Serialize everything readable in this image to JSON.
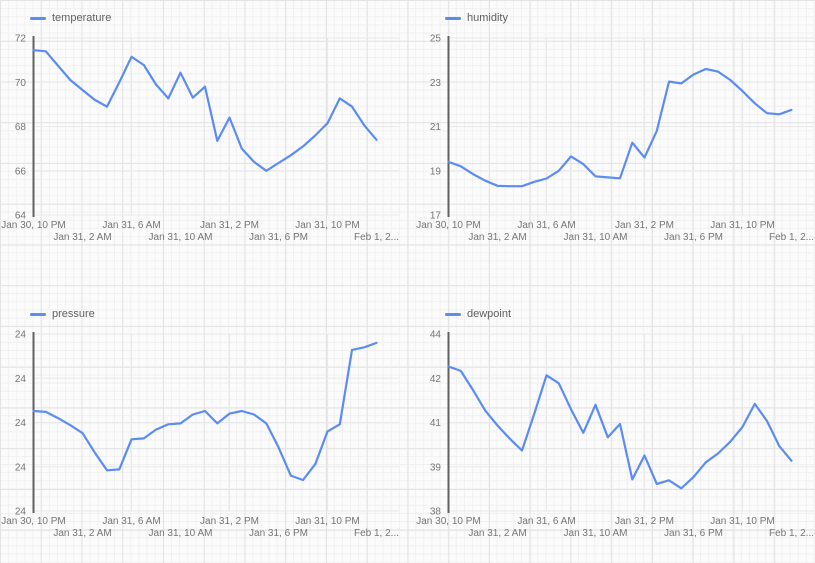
{
  "colors": {
    "series": "#5b8cf5",
    "axis": "#616161",
    "tick_text": "#757575",
    "legend_text": "#616161",
    "chart_grid": "#e9e9e9",
    "paper_grid_minor": "#f0f0f0",
    "paper_grid_major": "#e3e3e3",
    "background": "#fbfbfb"
  },
  "layout": {
    "grid": "2x2",
    "legend_position": "top-left",
    "x_label_rows": "staggered-2-rows"
  },
  "chart_data": [
    {
      "type": "line",
      "legend": "temperature",
      "series_color": "#5b8cf5",
      "x_start_label": "Jan 30, 10 PM",
      "x_interval_hours": 1,
      "x_tick_labels": [
        "Jan 30, 10 PM",
        "Jan 31, 2 AM",
        "Jan 31, 6 AM",
        "Jan 31, 10 AM",
        "Jan 31, 2 PM",
        "Jan 31, 6 PM",
        "Jan 31, 10 PM",
        "Feb 1, 2..."
      ],
      "y_tick_labels": [
        "72",
        "70",
        "68",
        "66",
        "64"
      ],
      "ylim": [
        64,
        72
      ],
      "values": [
        71.45,
        71.4,
        70.75,
        70.1,
        69.65,
        69.2,
        68.9,
        70.0,
        71.15,
        70.78,
        69.9,
        69.27,
        70.43,
        69.3,
        69.8,
        67.35,
        68.4,
        67.0,
        66.4,
        66.0,
        66.35,
        66.7,
        67.1,
        67.6,
        68.15,
        69.27,
        68.9,
        68.05,
        67.4
      ]
    },
    {
      "type": "line",
      "legend": "humidity",
      "series_color": "#5b8cf5",
      "x_start_label": "Jan 30, 10 PM",
      "x_interval_hours": 1,
      "x_tick_labels": [
        "Jan 30, 10 PM",
        "Jan 31, 2 AM",
        "Jan 31, 6 AM",
        "Jan 31, 10 AM",
        "Jan 31, 2 PM",
        "Jan 31, 6 PM",
        "Jan 31, 10 PM",
        "Feb 1, 2..."
      ],
      "y_tick_labels": [
        "25",
        "23",
        "21",
        "19",
        "17"
      ],
      "ylim": [
        17,
        25
      ],
      "values": [
        19.4,
        19.2,
        18.85,
        18.55,
        18.32,
        18.3,
        18.3,
        18.5,
        18.65,
        19.0,
        19.65,
        19.3,
        18.75,
        18.7,
        18.66,
        20.27,
        19.6,
        20.8,
        23.03,
        22.95,
        23.35,
        23.6,
        23.48,
        23.1,
        22.6,
        22.05,
        21.6,
        21.55,
        21.75
      ]
    },
    {
      "type": "line",
      "legend": "pressure",
      "series_color": "#5b8cf5",
      "x_start_label": "Jan 30, 10 PM",
      "x_interval_hours": 1,
      "x_tick_labels": [
        "Jan 30, 10 PM",
        "Jan 31, 2 AM",
        "Jan 31, 6 AM",
        "Jan 31, 10 AM",
        "Jan 31, 2 PM",
        "Jan 31, 6 PM",
        "Jan 31, 10 PM",
        "Feb 1, 2..."
      ],
      "y_tick_labels": [
        "24",
        "24",
        "24",
        "24",
        "24"
      ],
      "ylim": [
        23.9,
        24.1
      ],
      "values": [
        24.013,
        24.012,
        24.005,
        23.997,
        23.988,
        23.966,
        23.946,
        23.947,
        23.981,
        23.982,
        23.992,
        23.998,
        23.999,
        24.009,
        24.013,
        23.999,
        24.01,
        24.013,
        24.009,
        23.999,
        23.972,
        23.94,
        23.935,
        23.953,
        23.99,
        23.998,
        24.082,
        24.085,
        24.09
      ]
    },
    {
      "type": "line",
      "legend": "dewpoint",
      "series_color": "#5b8cf5",
      "x_start_label": "Jan 30, 10 PM",
      "x_interval_hours": 1,
      "x_tick_labels": [
        "Jan 30, 10 PM",
        "Jan 31, 2 AM",
        "Jan 31, 6 AM",
        "Jan 31, 10 AM",
        "Jan 31, 2 PM",
        "Jan 31, 6 PM",
        "Jan 31, 10 PM",
        "Feb 1, 2..."
      ],
      "y_tick_labels": [
        "44",
        "42",
        "41",
        "39",
        "38"
      ],
      "ylim": [
        38,
        44
      ],
      "values": [
        42.9,
        42.75,
        42.1,
        41.4,
        40.9,
        40.45,
        40.05,
        41.3,
        42.6,
        42.33,
        41.45,
        40.65,
        41.6,
        40.5,
        40.95,
        39.07,
        39.88,
        38.92,
        39.04,
        38.77,
        39.15,
        39.65,
        39.95,
        40.35,
        40.85,
        41.63,
        41.05,
        40.2,
        39.7
      ]
    }
  ]
}
